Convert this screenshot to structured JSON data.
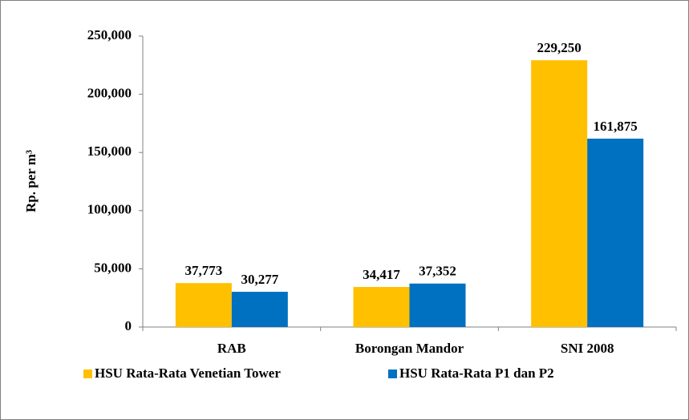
{
  "chart_data": {
    "type": "bar",
    "y_label": "Rp. per m³",
    "categories": [
      "RAB",
      "Borongan Mandor",
      "SNI 2008"
    ],
    "series": [
      {
        "name": "HSU Rata-Rata Venetian Tower",
        "color": "#ffc000",
        "values": [
          37773,
          34417,
          229250
        ],
        "value_labels": [
          "37,773",
          "34,417",
          "229,250"
        ]
      },
      {
        "name": "HSU Rata-Rata P1 dan P2",
        "color": "#0070c0",
        "values": [
          30277,
          37352,
          161875
        ],
        "value_labels": [
          "30,277",
          "37,352",
          "161,875"
        ]
      }
    ],
    "ylim": [
      0,
      250000
    ],
    "yticks": [
      0,
      {
        "value": 50000,
        "label": "50,000"
      },
      {
        "value": 100000,
        "label": "100,000"
      },
      {
        "value": 150000,
        "label": "150,000"
      },
      {
        "value": 200000,
        "label": "200,000"
      },
      {
        "value": 250000,
        "label": "250,000"
      }
    ],
    "legend": "bottom"
  }
}
